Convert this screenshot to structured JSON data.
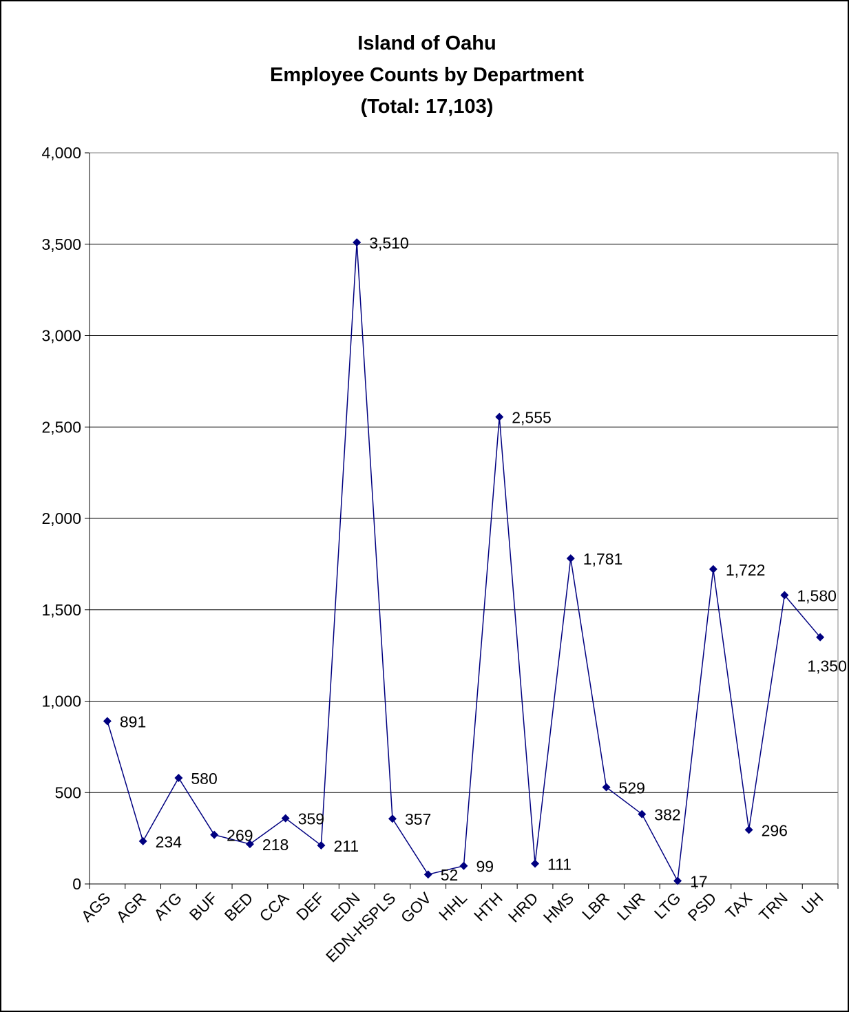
{
  "chart_data": {
    "type": "line",
    "title": [
      "Island of Oahu",
      "Employee Counts by Department",
      "(Total:  17,103)"
    ],
    "categories": [
      "AGS",
      "AGR",
      "ATG",
      "BUF",
      "BED",
      "CCA",
      "DEF",
      "EDN",
      "EDN-HSPLS",
      "GOV",
      "HHL",
      "HTH",
      "HRD",
      "HMS",
      "LBR",
      "LNR",
      "LTG",
      "PSD",
      "TAX",
      "TRN",
      "UH"
    ],
    "values": [
      891,
      234,
      580,
      269,
      218,
      359,
      211,
      3510,
      357,
      52,
      99,
      2555,
      111,
      1781,
      529,
      382,
      17,
      1722,
      296,
      1580,
      1350
    ],
    "value_labels": [
      "891",
      "234",
      "580",
      "269",
      "218",
      "359",
      "211",
      "3,510",
      "357",
      "52",
      "99",
      "2,555",
      "111",
      "1,781",
      "529",
      "382",
      "17",
      "1,722",
      "296",
      "1,580",
      "1,350"
    ],
    "color": "#000080",
    "ylim": [
      0,
      4000
    ],
    "yticks": [
      0,
      500,
      {
        "value": 1000,
        "label": "1,000"
      },
      {
        "value": 1500,
        "label": "1,500"
      },
      {
        "value": 2000,
        "label": "2,000"
      },
      {
        "value": 2500,
        "label": "2,500"
      },
      {
        "value": 3000,
        "label": "3,000"
      },
      {
        "value": 3500,
        "label": "3,500"
      },
      {
        "value": 4000,
        "label": "4,000"
      }
    ],
    "grid": true
  }
}
